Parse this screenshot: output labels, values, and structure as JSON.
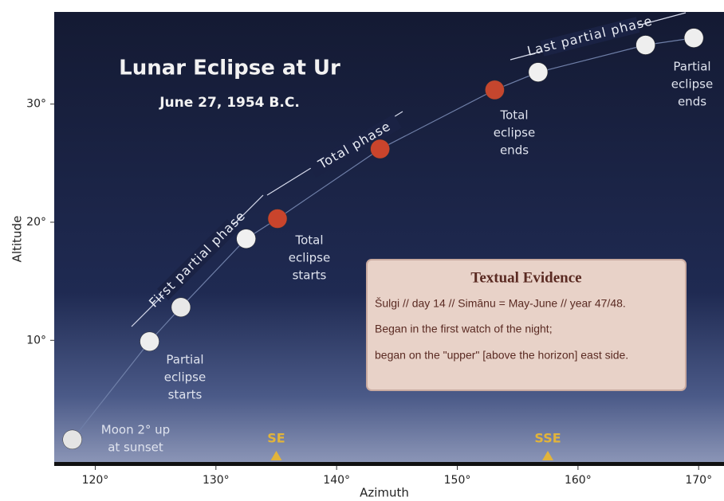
{
  "chart_data": {
    "type": "scatter",
    "title": "Lunar Eclipse at Ur",
    "subtitle": "June 27, 1954 B.C.",
    "x_label": "Azimuth",
    "y_label": "Altitude",
    "xlim": [
      116.6,
      172.1
    ],
    "ylim": [
      -0.5,
      37.8
    ],
    "xticks": [
      {
        "value": 120,
        "label": "120°"
      },
      {
        "value": 130,
        "label": "130°"
      },
      {
        "value": 140,
        "label": "140°"
      },
      {
        "value": 150,
        "label": "150°"
      },
      {
        "value": 160,
        "label": "160°"
      },
      {
        "value": 170,
        "label": "170°"
      }
    ],
    "yticks": [
      {
        "value": 10,
        "label": "10°"
      },
      {
        "value": 20,
        "label": "20°"
      },
      {
        "value": 30,
        "label": "30°"
      }
    ],
    "path_color": "#6f7fa8",
    "points": {
      "x": [
        118.1,
        124.5,
        127.1,
        132.5,
        135.1,
        143.6,
        153.1,
        156.7,
        165.6,
        169.6
      ],
      "y": [
        1.6,
        9.9,
        12.8,
        18.6,
        20.3,
        26.2,
        31.2,
        32.7,
        35.0,
        35.6
      ],
      "colors": [
        "#e4e4e4",
        "#eeeeee",
        "#e8e8e8",
        "#f0f0f0",
        "#c9442c",
        "#c9442c",
        "#c4462e",
        "#f0f0f0",
        "#eeeeee",
        "#eeeeee"
      ]
    },
    "annotations": [
      {
        "lines": [
          "Moon 2° up",
          "at sunset"
        ]
      },
      {
        "lines": [
          "Partial",
          "eclipse",
          "starts"
        ]
      },
      {
        "lines": [
          "Total",
          "eclipse",
          "starts"
        ]
      },
      {
        "lines": [
          "Total",
          "eclipse",
          "ends"
        ]
      },
      {
        "lines": [
          "Partial",
          "eclipse",
          "ends"
        ]
      }
    ],
    "phases": [
      "First partial phase",
      "Total phase",
      "Last partial phase"
    ],
    "directions": [
      {
        "label": "SE",
        "value": 135
      },
      {
        "label": "SSE",
        "value": 157.5
      }
    ],
    "direction_color": "#e2b43a",
    "evidence": {
      "title": "Textual Evidence",
      "lines": [
        "Šulgi // day 14 // Simānu = May-June // year 47/48.",
        "Began in the first watch of the night;",
        "began on the \"upper\" [above the horizon] east side."
      ]
    }
  }
}
